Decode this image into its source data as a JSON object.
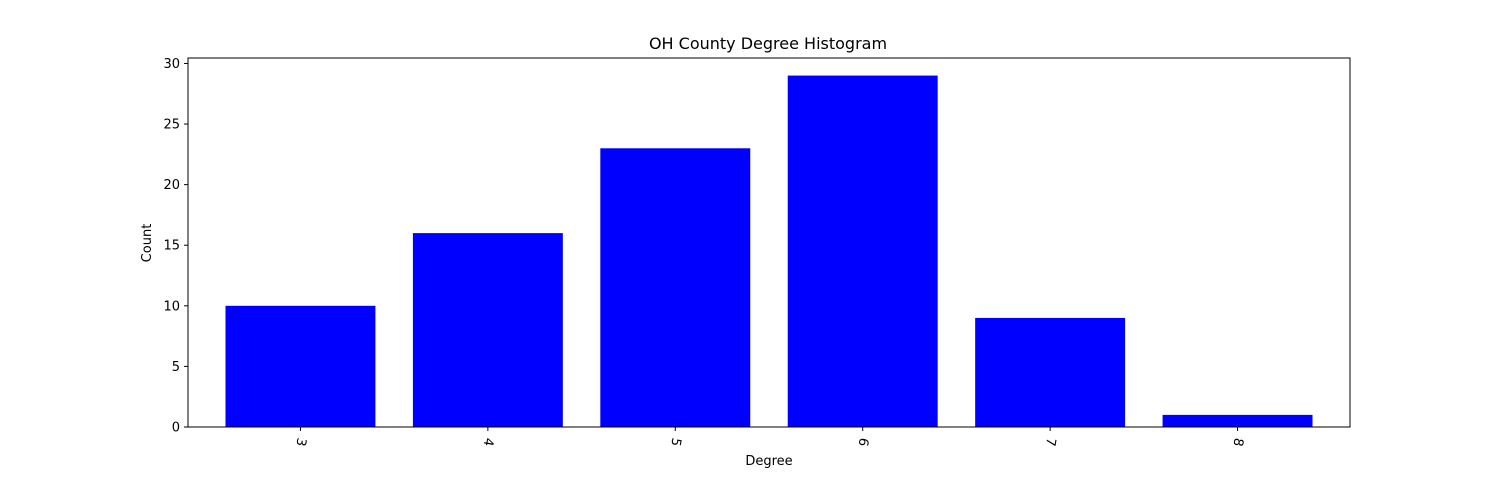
{
  "chart_data": {
    "type": "bar",
    "title": "OH County Degree Histogram",
    "xlabel": "Degree",
    "ylabel": "Count",
    "categories": [
      "3",
      "4",
      "5",
      "6",
      "7",
      "8"
    ],
    "values": [
      10,
      16,
      23,
      29,
      9,
      1
    ],
    "ylim": [
      0,
      30.45
    ],
    "yticks": [
      "0",
      "5",
      "10",
      "15",
      "20",
      "25",
      "30"
    ],
    "bar_color": "#0000ff",
    "grid": false,
    "legend": "none",
    "xtick_rotation": "rotated"
  }
}
